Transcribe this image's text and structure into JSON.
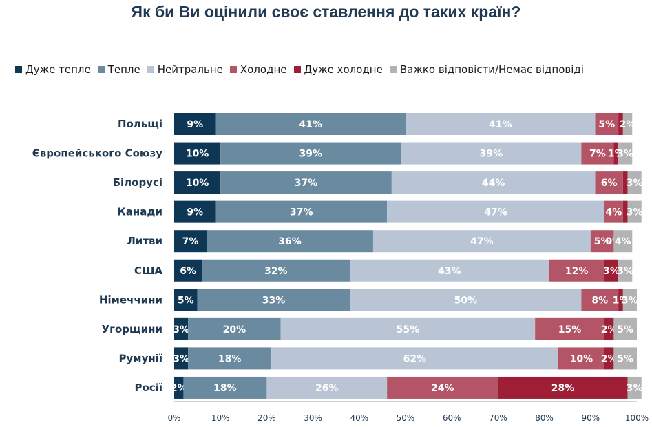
{
  "chart_data": {
    "type": "bar",
    "orientation": "horizontal",
    "stacked": true,
    "title": "Як би Ви оцінили своє ставлення до таких країн?",
    "xlabel": "",
    "ylabel": "",
    "xlim": [
      0,
      100
    ],
    "x_ticks": [
      "0%",
      "10%",
      "20%",
      "30%",
      "40%",
      "50%",
      "60%",
      "70%",
      "80%",
      "90%",
      "100%"
    ],
    "legend_position": "top",
    "grid": false,
    "categories": [
      "Польщі",
      "Європейського Союзу",
      "Білорусі",
      "Канади",
      "Литви",
      "США",
      "Німеччини",
      "Угорщини",
      "Румунії",
      "Росії"
    ],
    "series": [
      {
        "name": "Дуже тепле",
        "color": "#0e3756",
        "values": [
          9,
          10,
          10,
          9,
          7,
          6,
          5,
          3,
          3,
          2
        ]
      },
      {
        "name": "Тепле",
        "color": "#6a8aa0",
        "values": [
          41,
          39,
          37,
          37,
          36,
          32,
          33,
          20,
          18,
          18
        ]
      },
      {
        "name": "Нейтральне",
        "color": "#b9c5d4",
        "values": [
          41,
          39,
          44,
          47,
          47,
          43,
          50,
          55,
          62,
          26
        ]
      },
      {
        "name": "Холодне",
        "color": "#b35566",
        "values": [
          5,
          7,
          6,
          4,
          5,
          12,
          8,
          15,
          10,
          24
        ]
      },
      {
        "name": "Дуже холодне",
        "color": "#9e1f35",
        "values": [
          1,
          1,
          1,
          1,
          0,
          3,
          1,
          2,
          2,
          28
        ]
      },
      {
        "name": "Важко відповісти/Немає відповіді",
        "color": "#b3b3b3",
        "values": [
          2,
          3,
          3,
          3,
          4,
          3,
          3,
          5,
          5,
          3
        ]
      }
    ],
    "data_labels": [
      [
        "9%",
        "41%",
        "41%",
        "5%",
        "",
        "2%"
      ],
      [
        "10%",
        "39%",
        "39%",
        "7%",
        "1%",
        "3%"
      ],
      [
        "10%",
        "37%",
        "44%",
        "6%",
        "",
        "3%"
      ],
      [
        "9%",
        "37%",
        "47%",
        "4%",
        "",
        "3%"
      ],
      [
        "7%",
        "36%",
        "47%",
        "5%",
        "0%",
        "4%"
      ],
      [
        "6%",
        "32%",
        "43%",
        "12%",
        "3%",
        "3%"
      ],
      [
        "5%",
        "33%",
        "50%",
        "8%",
        "1%",
        "3%"
      ],
      [
        "3%",
        "20%",
        "55%",
        "15%",
        "2%",
        "5%"
      ],
      [
        "3%",
        "18%",
        "62%",
        "10%",
        "2%",
        "5%"
      ],
      [
        "2%",
        "18%",
        "26%",
        "24%",
        "28%",
        "3%"
      ]
    ]
  }
}
